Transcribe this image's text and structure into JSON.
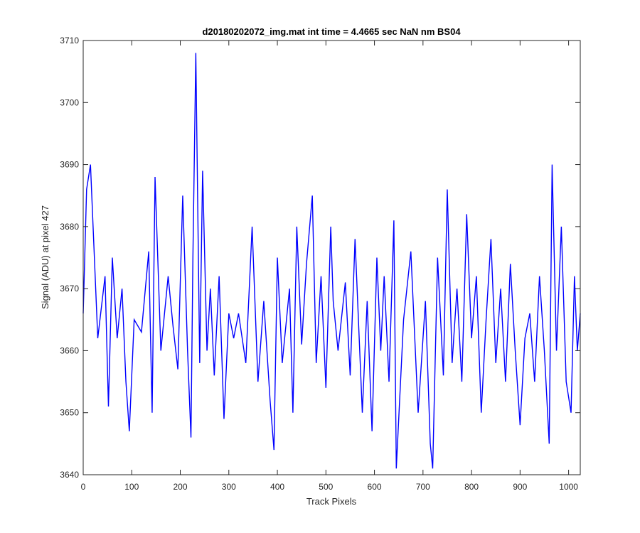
{
  "chart_data": {
    "type": "line",
    "title": "d20180202072_img.mat int time = 4.4665 sec  NaN nm BS04",
    "xlabel": "Track Pixels",
    "ylabel": "Signal (ADU) at pixel 427",
    "xlim": [
      0,
      1024
    ],
    "ylim": [
      3640,
      3710
    ],
    "xticks": [
      0,
      100,
      200,
      300,
      400,
      500,
      600,
      700,
      800,
      900,
      1000
    ],
    "yticks": [
      3640,
      3650,
      3660,
      3670,
      3680,
      3690,
      3700,
      3710
    ],
    "grid": false,
    "series_color": "#0000ff",
    "series": [
      {
        "x": [
          0,
          7,
          15,
          30,
          45,
          52,
          60,
          70,
          80,
          88,
          95,
          105,
          120,
          135,
          142,
          148,
          160,
          175,
          185,
          195,
          205,
          215,
          222,
          226,
          232,
          240,
          246,
          255,
          262,
          270,
          280,
          290,
          300,
          310,
          320,
          335,
          348,
          360,
          372,
          385,
          393,
          400,
          410,
          425,
          432,
          440,
          450,
          460,
          472,
          480,
          490,
          500,
          510,
          515,
          525,
          540,
          550,
          560,
          575,
          585,
          595,
          605,
          613,
          620,
          630,
          640,
          645,
          660,
          675,
          690,
          705,
          715,
          720,
          730,
          742,
          750,
          760,
          770,
          780,
          790,
          800,
          810,
          820,
          830,
          840,
          850,
          860,
          870,
          880,
          890,
          900,
          910,
          920,
          930,
          940,
          950,
          960,
          966,
          975,
          985,
          995,
          1005,
          1012,
          1018,
          1024
        ],
        "y": [
          3666,
          3686,
          3690,
          3662,
          3672,
          3651,
          3675,
          3662,
          3670,
          3655,
          3647,
          3665,
          3663,
          3676,
          3650,
          3688,
          3660,
          3672,
          3664,
          3657,
          3685,
          3660,
          3646,
          3675,
          3708,
          3658,
          3689,
          3660,
          3670,
          3656,
          3672,
          3649,
          3666,
          3662,
          3666,
          3658,
          3680,
          3655,
          3668,
          3652,
          3644,
          3675,
          3658,
          3670,
          3650,
          3680,
          3661,
          3674,
          3685,
          3658,
          3672,
          3654,
          3680,
          3668,
          3660,
          3671,
          3656,
          3678,
          3650,
          3668,
          3647,
          3675,
          3660,
          3672,
          3655,
          3681,
          3641,
          3665,
          3676,
          3650,
          3668,
          3645,
          3641,
          3675,
          3656,
          3686,
          3658,
          3670,
          3655,
          3682,
          3662,
          3672,
          3650,
          3665,
          3678,
          3658,
          3670,
          3655,
          3674,
          3660,
          3648,
          3662,
          3666,
          3655,
          3672,
          3660,
          3645,
          3690,
          3660,
          3680,
          3655,
          3650,
          3672,
          3660,
          3666
        ]
      }
    ]
  }
}
